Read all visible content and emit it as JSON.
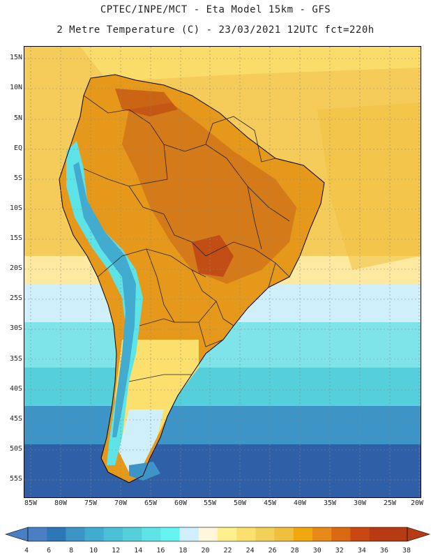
{
  "header": {
    "line1": "CPTEC/INPE/MCT -  Eta Model 15km - GFS",
    "line2": "2 Metre Temperature (C) - 23/03/2021 12UTC fct=220h"
  },
  "axes": {
    "lat_labels": [
      "15N",
      "10N",
      "5N",
      "EQ",
      "5S",
      "10S",
      "15S",
      "20S",
      "25S",
      "30S",
      "35S",
      "40S",
      "45S",
      "50S",
      "55S"
    ],
    "lon_labels": [
      "85W",
      "80W",
      "75W",
      "70W",
      "65W",
      "60W",
      "55W",
      "50W",
      "45W",
      "40W",
      "35W",
      "30W",
      "25W",
      "20W"
    ]
  },
  "colorbar": {
    "unit": "C",
    "labels": [
      "4",
      "6",
      "8",
      "10",
      "12",
      "14",
      "16",
      "18",
      "20",
      "22",
      "24",
      "26",
      "28",
      "30",
      "32",
      "34",
      "36",
      "38"
    ],
    "colors": [
      "#4a7fc4",
      "#2e76b6",
      "#3c95c6",
      "#42acd0",
      "#4bbfd6",
      "#55cfdb",
      "#5ee3e6",
      "#66f4f2",
      "#cfeffa",
      "#fff7dc",
      "#fff08e",
      "#fbe06e",
      "#f2cf56",
      "#f0bf3e",
      "#f0a80e",
      "#e88a1a",
      "#d96a12",
      "#c94710",
      "#b83a12",
      "#b53b12"
    ],
    "under_color": "#4a7fc4",
    "over_color": "#b53b12"
  },
  "legend_colors": {
    "ocean_cold": "#2f5fa6",
    "ocean_cool": "#55cfdb",
    "ocean_mild": "#cfeffa",
    "ocean_warm": "#f5cc5a",
    "land_hot": "#e5981a",
    "land_very_hot": "#c9621a",
    "andes": "#5ee3e6"
  }
}
